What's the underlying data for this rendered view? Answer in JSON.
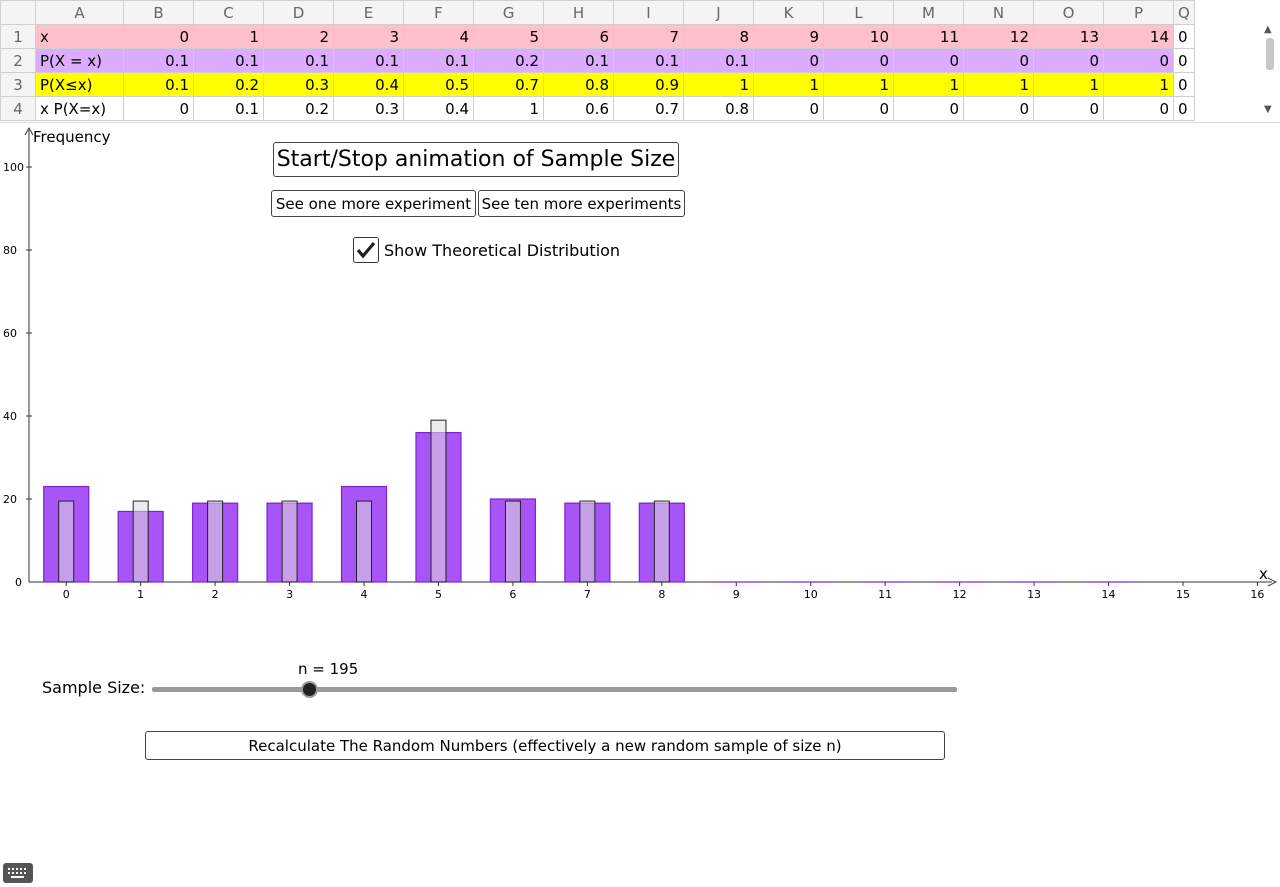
{
  "spreadsheet": {
    "columns": [
      "A",
      "B",
      "C",
      "D",
      "E",
      "F",
      "G",
      "H",
      "I",
      "J",
      "K",
      "L",
      "M",
      "N",
      "O",
      "P",
      "Q"
    ],
    "rows": [
      {
        "num": "1",
        "label": "x",
        "values": [
          "0",
          "1",
          "2",
          "3",
          "4",
          "5",
          "6",
          "7",
          "8",
          "9",
          "10",
          "11",
          "12",
          "13",
          "14"
        ],
        "q": "0"
      },
      {
        "num": "2",
        "label": "P(X = x)",
        "values": [
          "0.1",
          "0.1",
          "0.1",
          "0.1",
          "0.1",
          "0.2",
          "0.1",
          "0.1",
          "0.1",
          "0",
          "0",
          "0",
          "0",
          "0",
          "0"
        ],
        "q": "0"
      },
      {
        "num": "3",
        "label": "P(X≤x)",
        "values": [
          "0.1",
          "0.2",
          "0.3",
          "0.4",
          "0.5",
          "0.7",
          "0.8",
          "0.9",
          "1",
          "1",
          "1",
          "1",
          "1",
          "1",
          "1"
        ],
        "q": "0"
      },
      {
        "num": "4",
        "label": "x P(X=x)",
        "values": [
          "0",
          "0.1",
          "0.2",
          "0.3",
          "0.4",
          "1",
          "0.6",
          "0.7",
          "0.8",
          "0",
          "0",
          "0",
          "0",
          "0",
          "0"
        ],
        "q": "0"
      }
    ],
    "row_colors": [
      "#ffc0cb",
      "#dcacff",
      "#ffff00",
      "#ffffff"
    ]
  },
  "buttons": {
    "animation": "Start/Stop animation of Sample Size",
    "one_more": "See one more experiment",
    "ten_more": "See ten more experiments",
    "recalculate": "Recalculate The Random Numbers (effectively a new random sample of size n)"
  },
  "checkbox": {
    "label": "Show Theoretical Distribution",
    "checked": true
  },
  "slider": {
    "label": "Sample Size:",
    "value_text": "n = 195",
    "value": 195
  },
  "chart_data": {
    "type": "bar",
    "ylabel": "Frequency",
    "xlabel": "x",
    "x_ticks": [
      0,
      1,
      2,
      3,
      4,
      5,
      6,
      7,
      8,
      9,
      10,
      11,
      12,
      13,
      14,
      15,
      16
    ],
    "y_ticks": [
      0,
      20,
      40,
      60,
      80,
      100
    ],
    "ylim": [
      0,
      110
    ],
    "xlim": [
      -0.5,
      16.2
    ],
    "categories": [
      0,
      1,
      2,
      3,
      4,
      5,
      6,
      7,
      8,
      9,
      10,
      11,
      12,
      13,
      14
    ],
    "series": [
      {
        "values": [
          23,
          17,
          19,
          19,
          23,
          36,
          20,
          19,
          19,
          0,
          0,
          0,
          0,
          0,
          0
        ]
      },
      {
        "values": [
          19.5,
          19.5,
          19.5,
          19.5,
          19.5,
          39,
          19.5,
          19.5,
          19.5,
          0,
          0,
          0,
          0,
          0,
          0
        ]
      }
    ],
    "colors": {
      "observed": "#a855f7",
      "observed_border": "#7e22ce",
      "theoretical_fill": "rgba(220,220,220,0.55)"
    }
  }
}
